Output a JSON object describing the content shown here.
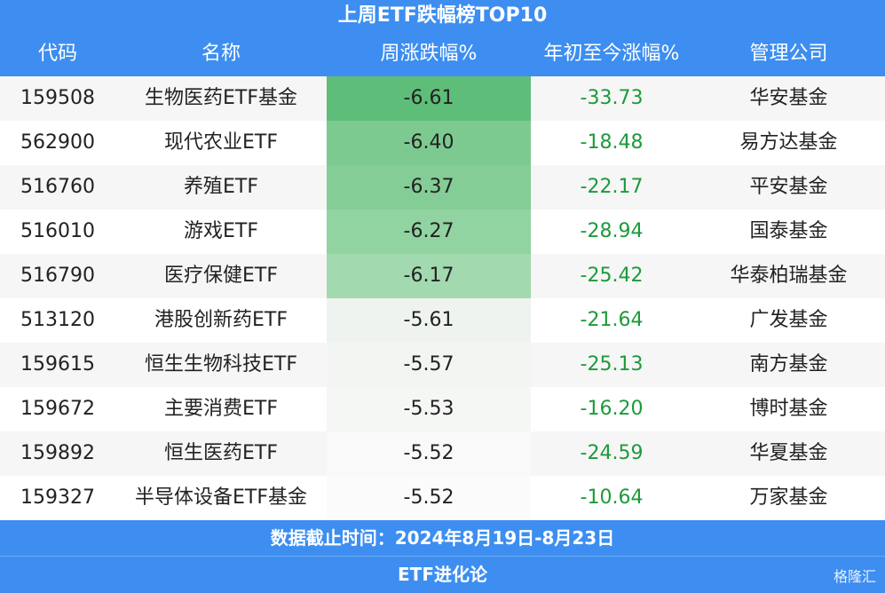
{
  "header": {
    "title": "上周ETF跌幅榜TOP10"
  },
  "table": {
    "columns": [
      "代码",
      "名称",
      "周涨跌幅%",
      "年初至今涨幅%",
      "管理公司"
    ],
    "rows": [
      [
        "159508",
        "生物医药ETF基金",
        "-6.61",
        "-33.73",
        "华安基金"
      ],
      [
        "562900",
        "现代农业ETF",
        "-6.40",
        "-18.48",
        "易方达基金"
      ],
      [
        "516760",
        "养殖ETF",
        "-6.37",
        "-22.17",
        "平安基金"
      ],
      [
        "516010",
        "游戏ETF",
        "-6.27",
        "-28.94",
        "国泰基金"
      ],
      [
        "516790",
        "医疗保健ETF",
        "-6.17",
        "-25.42",
        "华泰柏瑞基金"
      ],
      [
        "513120",
        "港股创新药ETF",
        "-5.61",
        "-21.64",
        "广发基金"
      ],
      [
        "159615",
        "恒生生物科技ETF",
        "-5.57",
        "-25.13",
        "南方基金"
      ],
      [
        "159672",
        "主要消费ETF",
        "-5.53",
        "-16.20",
        "博时基金"
      ],
      [
        "159892",
        "恒生医药ETF",
        "-5.52",
        "-24.59",
        "华夏基金"
      ],
      [
        "159327",
        "半导体设备ETF基金",
        "-5.52",
        "-10.64",
        "万家基金"
      ]
    ]
  },
  "footer": {
    "note": "数据截止时间：2024年8月19日-8月23日",
    "source": "ETF进化论",
    "watermark": "格隆汇"
  }
}
